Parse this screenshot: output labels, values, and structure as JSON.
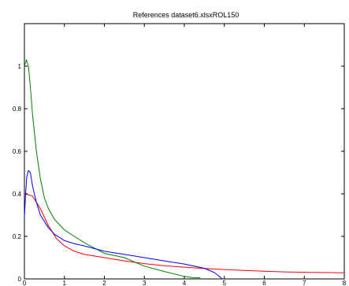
{
  "chart_data": {
    "type": "line",
    "title": "References dataset6.xlsxROL150",
    "xlabel": "",
    "ylabel": "",
    "xlim": [
      0,
      8
    ],
    "ylim": [
      0,
      1.2
    ],
    "xticks": [
      0,
      1,
      2,
      3,
      4,
      5,
      6,
      7,
      8
    ],
    "yticks": [
      0,
      0.2,
      0.4,
      0.6,
      0.8,
      1
    ],
    "grid": false,
    "legend": "none",
    "series": [
      {
        "color": "#ff0000",
        "x": [
          0,
          0.2,
          0.4,
          0.6,
          0.8,
          1.0,
          1.25,
          1.5,
          2.0,
          2.5,
          3.0,
          3.5,
          4.0,
          4.5,
          5.0,
          5.5,
          6.0,
          6.5,
          7.0,
          7.5,
          8.0
        ],
        "y": [
          0.4,
          0.39,
          0.33,
          0.25,
          0.19,
          0.155,
          0.13,
          0.115,
          0.1,
          0.085,
          0.072,
          0.062,
          0.055,
          0.049,
          0.044,
          0.04,
          0.036,
          0.033,
          0.031,
          0.03,
          0.029
        ]
      },
      {
        "color": "#008000",
        "x": [
          0,
          0.05,
          0.1,
          0.15,
          0.2,
          0.3,
          0.4,
          0.5,
          0.6,
          0.75,
          1.0,
          1.25,
          1.5,
          2.0,
          2.5,
          3.0,
          3.5,
          4.0,
          4.2,
          4.4
        ],
        "y": [
          1.0,
          1.03,
          1.0,
          0.9,
          0.78,
          0.6,
          0.47,
          0.38,
          0.33,
          0.28,
          0.23,
          0.2,
          0.17,
          0.12,
          0.1,
          0.06,
          0.035,
          0.012,
          0.006,
          0.005
        ]
      },
      {
        "color": "#0000ff",
        "x": [
          0,
          0.03,
          0.06,
          0.1,
          0.15,
          0.2,
          0.3,
          0.4,
          0.5,
          0.6,
          0.75,
          1.0,
          1.25,
          1.5,
          2.0,
          2.5,
          3.0,
          3.5,
          4.0,
          4.5,
          4.75,
          4.95
        ],
        "y": [
          0.29,
          0.4,
          0.48,
          0.51,
          0.5,
          0.44,
          0.36,
          0.3,
          0.27,
          0.24,
          0.21,
          0.18,
          0.165,
          0.155,
          0.13,
          0.115,
          0.1,
          0.085,
          0.07,
          0.05,
          0.03,
          0.0
        ]
      }
    ]
  }
}
